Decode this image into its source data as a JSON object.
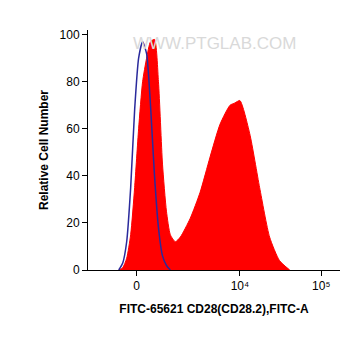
{
  "chart_data": {
    "type": "area",
    "x_label": "FITC-65621 CD28(CD28.2),FITC-A",
    "y_label": "Relative Cell Number",
    "annotations": [
      "WWW.PTGLAB.COM"
    ],
    "xlim": [
      -2000,
      170000
    ],
    "xticks": [
      0,
      {
        "value": 10000,
        "label": "10⁴"
      },
      {
        "value": 100000,
        "label": "10⁵"
      }
    ],
    "ylim": [
      0,
      102
    ],
    "yticks": [
      0,
      20,
      40,
      60,
      80,
      100
    ],
    "grid": false,
    "series": [
      {
        "type": "area",
        "color": "#ff0000",
        "x": [
          -570,
          -435,
          -308,
          -183,
          -61,
          61,
          183,
          308,
          435,
          570,
          710,
          863,
          1023,
          1193,
          1433,
          1702,
          2344,
          3160,
          4240,
          5670,
          7530,
          8670,
          9990,
          13200,
          17500,
          23200,
          30700,
          41000
        ],
        "values": [
          0,
          1,
          5,
          15,
          35,
          60,
          80,
          90,
          97,
          98,
          80,
          45,
          25,
          15,
          12,
          14,
          22,
          33,
          48,
          62,
          70,
          71,
          72,
          58,
          35,
          14,
          4,
          0
        ]
      },
      {
        "type": "line",
        "color": "#2a2a9c",
        "x": [
          -570,
          -435,
          -308,
          -183,
          -61,
          61,
          183,
          308,
          435,
          570,
          710,
          863,
          1023,
          1193
        ],
        "values": [
          0,
          3,
          12,
          35,
          68,
          90,
          97,
          92,
          70,
          40,
          18,
          6,
          2,
          0
        ]
      }
    ]
  }
}
